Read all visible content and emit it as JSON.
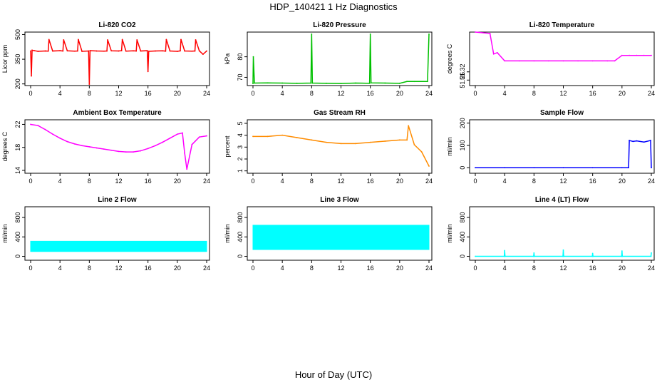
{
  "title": "HDP_140421  1 Hz Diagnostics",
  "x_caption": "Hour of Day (UTC)",
  "chart_data": [
    {
      "type": "line",
      "title": "Li-820 CO2",
      "ylabel": "Licor ppm",
      "color": "#ff0000",
      "xlim": [
        0,
        24
      ],
      "ylim": [
        190,
        515
      ],
      "yticks": [
        200,
        350,
        500
      ],
      "xticks": [
        0,
        4,
        8,
        12,
        16,
        20,
        24
      ],
      "series": [
        {
          "name": "CO2",
          "x": [
            0,
            0.1,
            0.2,
            0.5,
            1,
            2,
            2.4,
            2.5,
            3,
            4,
            4.4,
            4.5,
            5,
            6,
            6.4,
            6.5,
            7,
            7.9,
            8,
            8.1,
            9,
            10,
            10.4,
            10.5,
            11,
            12,
            12.4,
            12.5,
            13,
            14,
            14.4,
            14.5,
            15,
            15.9,
            16,
            16.1,
            17,
            18,
            18.4,
            18.5,
            19,
            20,
            20.4,
            20.5,
            21,
            22,
            22.4,
            22.5,
            23,
            23.5,
            24
          ],
          "y": [
            400,
            248,
            405,
            402,
            398,
            400,
            399,
            470,
            400,
            402,
            400,
            468,
            401,
            399,
            400,
            470,
            398,
            400,
            198,
            402,
            400,
            399,
            400,
            468,
            401,
            400,
            402,
            470,
            399,
            401,
            400,
            468,
            400,
            402,
            275,
            398,
            400,
            401,
            399,
            470,
            400,
            398,
            401,
            470,
            400,
            399,
            400,
            468,
            401,
            380,
            400
          ]
        }
      ]
    },
    {
      "type": "line",
      "title": "Li-820 Pressure",
      "ylabel": "kPa",
      "color": "#00c000",
      "xlim": [
        0,
        24
      ],
      "ylim": [
        66,
        92
      ],
      "yticks": [
        70,
        80
      ],
      "xticks": [
        0,
        4,
        8,
        12,
        16,
        20,
        24
      ],
      "series": [
        {
          "name": "Pressure",
          "x": [
            0,
            0.05,
            0.2,
            2,
            4,
            6,
            7.9,
            8,
            8.1,
            10,
            12,
            14,
            15.9,
            16,
            16.1,
            18,
            20,
            21,
            22,
            23.8,
            24
          ],
          "y": [
            67,
            80,
            67.2,
            67.3,
            67.2,
            67.1,
            67.2,
            91,
            67.2,
            67.1,
            67,
            67.2,
            67.1,
            91,
            67.3,
            67.2,
            67.1,
            68,
            68,
            68,
            91
          ]
        }
      ]
    },
    {
      "type": "line",
      "title": "Li-820 Temperature",
      "ylabel": "degrees C",
      "color": "#ff00ff",
      "xlim": [
        0,
        24
      ],
      "ylim": [
        51.22,
        51.61
      ],
      "yticks": [
        51.26,
        51.32
      ],
      "xticks": [
        0,
        4,
        8,
        12,
        16,
        20,
        24
      ],
      "series": [
        {
          "name": "Temperature",
          "x": [
            0,
            2,
            2.5,
            3,
            4,
            6,
            8,
            10,
            12,
            14,
            16,
            18,
            19,
            20,
            21,
            22,
            23,
            24
          ],
          "y": [
            51.61,
            51.6,
            51.45,
            51.46,
            51.4,
            51.4,
            51.4,
            51.4,
            51.4,
            51.4,
            51.4,
            51.4,
            51.4,
            51.44,
            51.44,
            51.44,
            51.44,
            51.44
          ]
        }
      ]
    },
    {
      "type": "line",
      "title": "Ambient Box Temperature",
      "ylabel": "degrees C",
      "color": "#ff00ff",
      "xlim": [
        0,
        24
      ],
      "ylim": [
        13.5,
        22.8
      ],
      "yticks": [
        14,
        18,
        22
      ],
      "xticks": [
        0,
        4,
        8,
        12,
        16,
        20,
        24
      ],
      "series": [
        {
          "name": "Box Temperature",
          "x": [
            0,
            1,
            2,
            3,
            4,
            5,
            6,
            7,
            8,
            9,
            10,
            11,
            12,
            13,
            14,
            15,
            16,
            17,
            18,
            19,
            20,
            20.7,
            21,
            21.3,
            22,
            23,
            24
          ],
          "y": [
            22.0,
            21.8,
            21.1,
            20.3,
            19.6,
            19.0,
            18.6,
            18.3,
            18.1,
            17.9,
            17.7,
            17.5,
            17.3,
            17.2,
            17.2,
            17.4,
            17.8,
            18.3,
            18.9,
            19.6,
            20.3,
            20.5,
            17.0,
            14.2,
            18.5,
            19.8,
            20.0
          ]
        }
      ]
    },
    {
      "type": "line",
      "title": "Gas Stream RH",
      "ylabel": "percent",
      "color": "#ff8c00",
      "xlim": [
        0,
        24
      ],
      "ylim": [
        0.8,
        5.3
      ],
      "yticks": [
        1,
        2,
        3,
        4,
        5
      ],
      "xticks": [
        0,
        4,
        8,
        12,
        16,
        20,
        24
      ],
      "series": [
        {
          "name": "RH",
          "x": [
            0,
            2,
            4,
            6,
            8,
            10,
            12,
            14,
            16,
            18,
            20,
            21,
            21.2,
            22,
            23,
            24
          ],
          "y": [
            3.9,
            3.9,
            4.0,
            3.8,
            3.6,
            3.4,
            3.3,
            3.3,
            3.4,
            3.5,
            3.6,
            3.6,
            4.8,
            3.2,
            2.6,
            1.4
          ]
        }
      ]
    },
    {
      "type": "line",
      "title": "Sample Flow",
      "ylabel": "ml/min",
      "color": "#0000ff",
      "xlim": [
        0,
        24
      ],
      "ylim": [
        -25,
        215
      ],
      "yticks": [
        0,
        100,
        200
      ],
      "xticks": [
        0,
        4,
        8,
        12,
        16,
        20,
        24
      ],
      "series": [
        {
          "name": "Sample Flow",
          "x": [
            0,
            4,
            8,
            12,
            16,
            20,
            20.9,
            21,
            21.5,
            22,
            23,
            23.9,
            24
          ],
          "y": [
            0,
            0,
            0,
            0,
            0,
            0,
            0,
            122,
            118,
            120,
            115,
            122,
            0
          ]
        }
      ]
    },
    {
      "type": "line",
      "title": "Line 2 Flow",
      "ylabel": "ml/min",
      "color": "#00ffff",
      "xlim": [
        0,
        24
      ],
      "ylim": [
        -80,
        1020
      ],
      "yticks": [
        0,
        400,
        800
      ],
      "xticks": [
        0,
        4,
        8,
        12,
        16,
        20,
        24
      ],
      "series": [
        {
          "name": "Line 2 Flow",
          "x": [
            0,
            24
          ],
          "y_low": [
            100,
            100
          ],
          "y_high": [
            310,
            310
          ]
        }
      ]
    },
    {
      "type": "line",
      "title": "Line 3 Flow",
      "ylabel": "ml/min",
      "color": "#00ffff",
      "xlim": [
        0,
        24
      ],
      "ylim": [
        -80,
        1020
      ],
      "yticks": [
        0,
        400,
        800
      ],
      "xticks": [
        0,
        4,
        8,
        12,
        16,
        20,
        24
      ],
      "series": [
        {
          "name": "Line 3 Flow",
          "x": [
            0,
            24
          ],
          "y_low": [
            140,
            140
          ],
          "y_high": [
            640,
            640
          ]
        }
      ]
    },
    {
      "type": "line",
      "title": "Line 4 (LT) Flow",
      "ylabel": "ml/min",
      "color": "#00ffff",
      "xlim": [
        0,
        24
      ],
      "ylim": [
        -80,
        1020
      ],
      "yticks": [
        0,
        400,
        800
      ],
      "xticks": [
        0,
        4,
        8,
        12,
        16,
        20,
        24
      ],
      "series": [
        {
          "name": "Line 4 Flow",
          "x": [
            0,
            3.95,
            4,
            4.05,
            7.95,
            8,
            8.05,
            11.95,
            12,
            12.05,
            15.95,
            16,
            16.05,
            19.95,
            20,
            20.05,
            23.95,
            24
          ],
          "y": [
            0,
            0,
            120,
            0,
            0,
            70,
            0,
            0,
            130,
            0,
            0,
            60,
            0,
            0,
            110,
            0,
            0,
            70
          ]
        }
      ]
    }
  ]
}
